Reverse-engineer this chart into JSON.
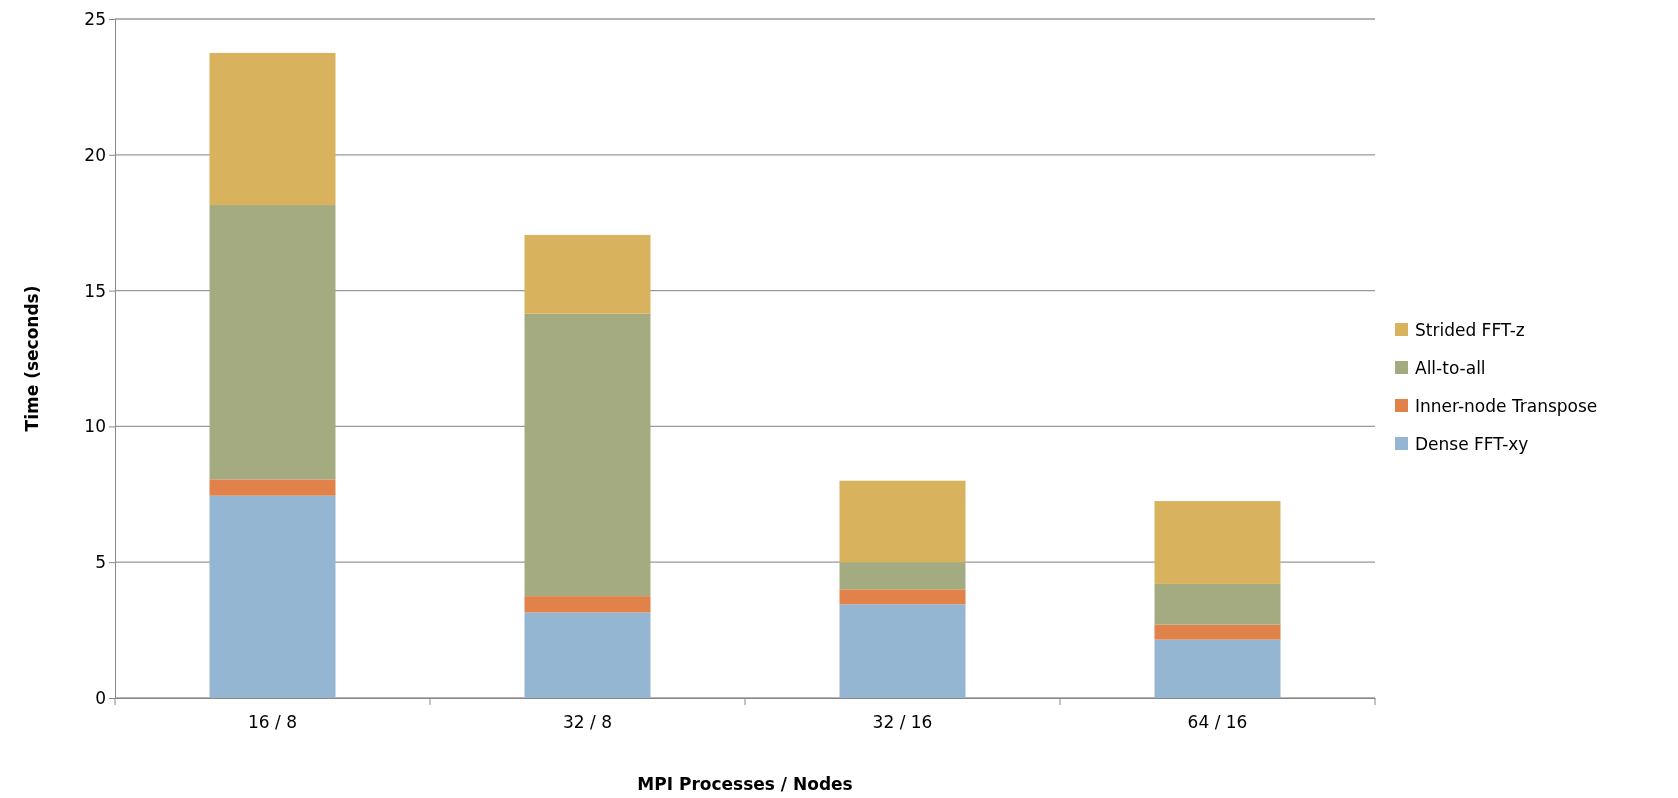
{
  "chart_data": {
    "type": "bar",
    "stacked": true,
    "xlabel": "MPI Processes / Nodes",
    "ylabel": "Time (seconds)",
    "categories": [
      "16 / 8",
      "32 / 8",
      "32 / 16",
      "64 / 16"
    ],
    "series": [
      {
        "name": "Dense FFT-xy",
        "color": "#95b6d3",
        "values": [
          7.45,
          3.15,
          3.45,
          2.15
        ]
      },
      {
        "name": "Inner-node Transpose",
        "color": "#e0824a",
        "values": [
          0.6,
          0.6,
          0.55,
          0.55
        ]
      },
      {
        "name": "All-to-all",
        "color": "#a5ab80",
        "values": [
          10.1,
          10.4,
          1.0,
          1.5
        ]
      },
      {
        "name": "Strided FFT-z",
        "color": "#d8b25d",
        "values": [
          5.6,
          2.9,
          3.0,
          3.05
        ]
      }
    ],
    "ylim": [
      0,
      25
    ],
    "yticks": [
      0,
      5,
      10,
      15,
      20,
      25
    ],
    "grid": "y",
    "legend": "right"
  }
}
